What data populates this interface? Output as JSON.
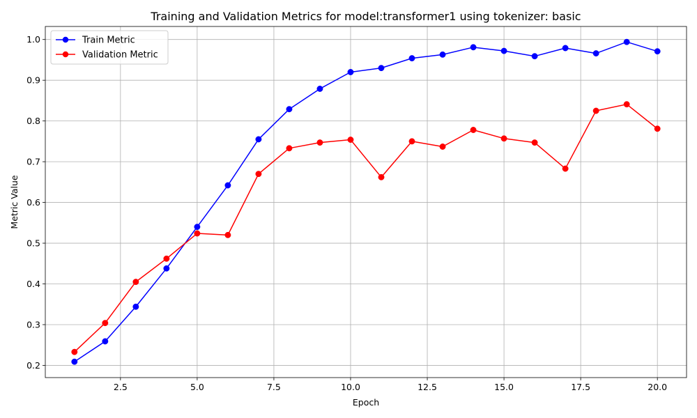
{
  "chart_data": {
    "type": "line",
    "title": "Training and Validation Metrics for model:transformer1 using tokenizer: basic",
    "xlabel": "Epoch",
    "ylabel": "Metric Value",
    "xlim": [
      0.05,
      20.95
    ],
    "ylim": [
      0.17,
      1.032
    ],
    "xticks": [
      2.5,
      5.0,
      7.5,
      10.0,
      12.5,
      15.0,
      17.5,
      20.0
    ],
    "xtick_labels": [
      "2.5",
      "5.0",
      "7.5",
      "10.0",
      "12.5",
      "15.0",
      "17.5",
      "20.0"
    ],
    "yticks": [
      0.2,
      0.3,
      0.4,
      0.5,
      0.6,
      0.7,
      0.8,
      0.9,
      1.0
    ],
    "ytick_labels": [
      "0.2",
      "0.3",
      "0.4",
      "0.5",
      "0.6",
      "0.7",
      "0.8",
      "0.9",
      "1.0"
    ],
    "grid": true,
    "legend_position": "top-left",
    "x": [
      1,
      2,
      3,
      4,
      5,
      6,
      7,
      8,
      9,
      10,
      11,
      12,
      13,
      14,
      15,
      16,
      17,
      18,
      19,
      20
    ],
    "series": [
      {
        "name": "Train Metric",
        "color": "#0000ff",
        "marker": "circle",
        "values": [
          0.209,
          0.259,
          0.344,
          0.438,
          0.54,
          0.642,
          0.755,
          0.829,
          0.879,
          0.92,
          0.93,
          0.954,
          0.963,
          0.981,
          0.972,
          0.959,
          0.979,
          0.966,
          0.994,
          0.971
        ]
      },
      {
        "name": "Validation Metric",
        "color": "#ff0000",
        "marker": "circle",
        "values": [
          0.233,
          0.304,
          0.405,
          0.462,
          0.524,
          0.52,
          0.67,
          0.733,
          0.747,
          0.754,
          0.662,
          0.75,
          0.737,
          0.778,
          0.757,
          0.747,
          0.683,
          0.825,
          0.841,
          0.781
        ]
      }
    ],
    "axis_color": "#000000",
    "grid_color": "#b0b0b0"
  }
}
